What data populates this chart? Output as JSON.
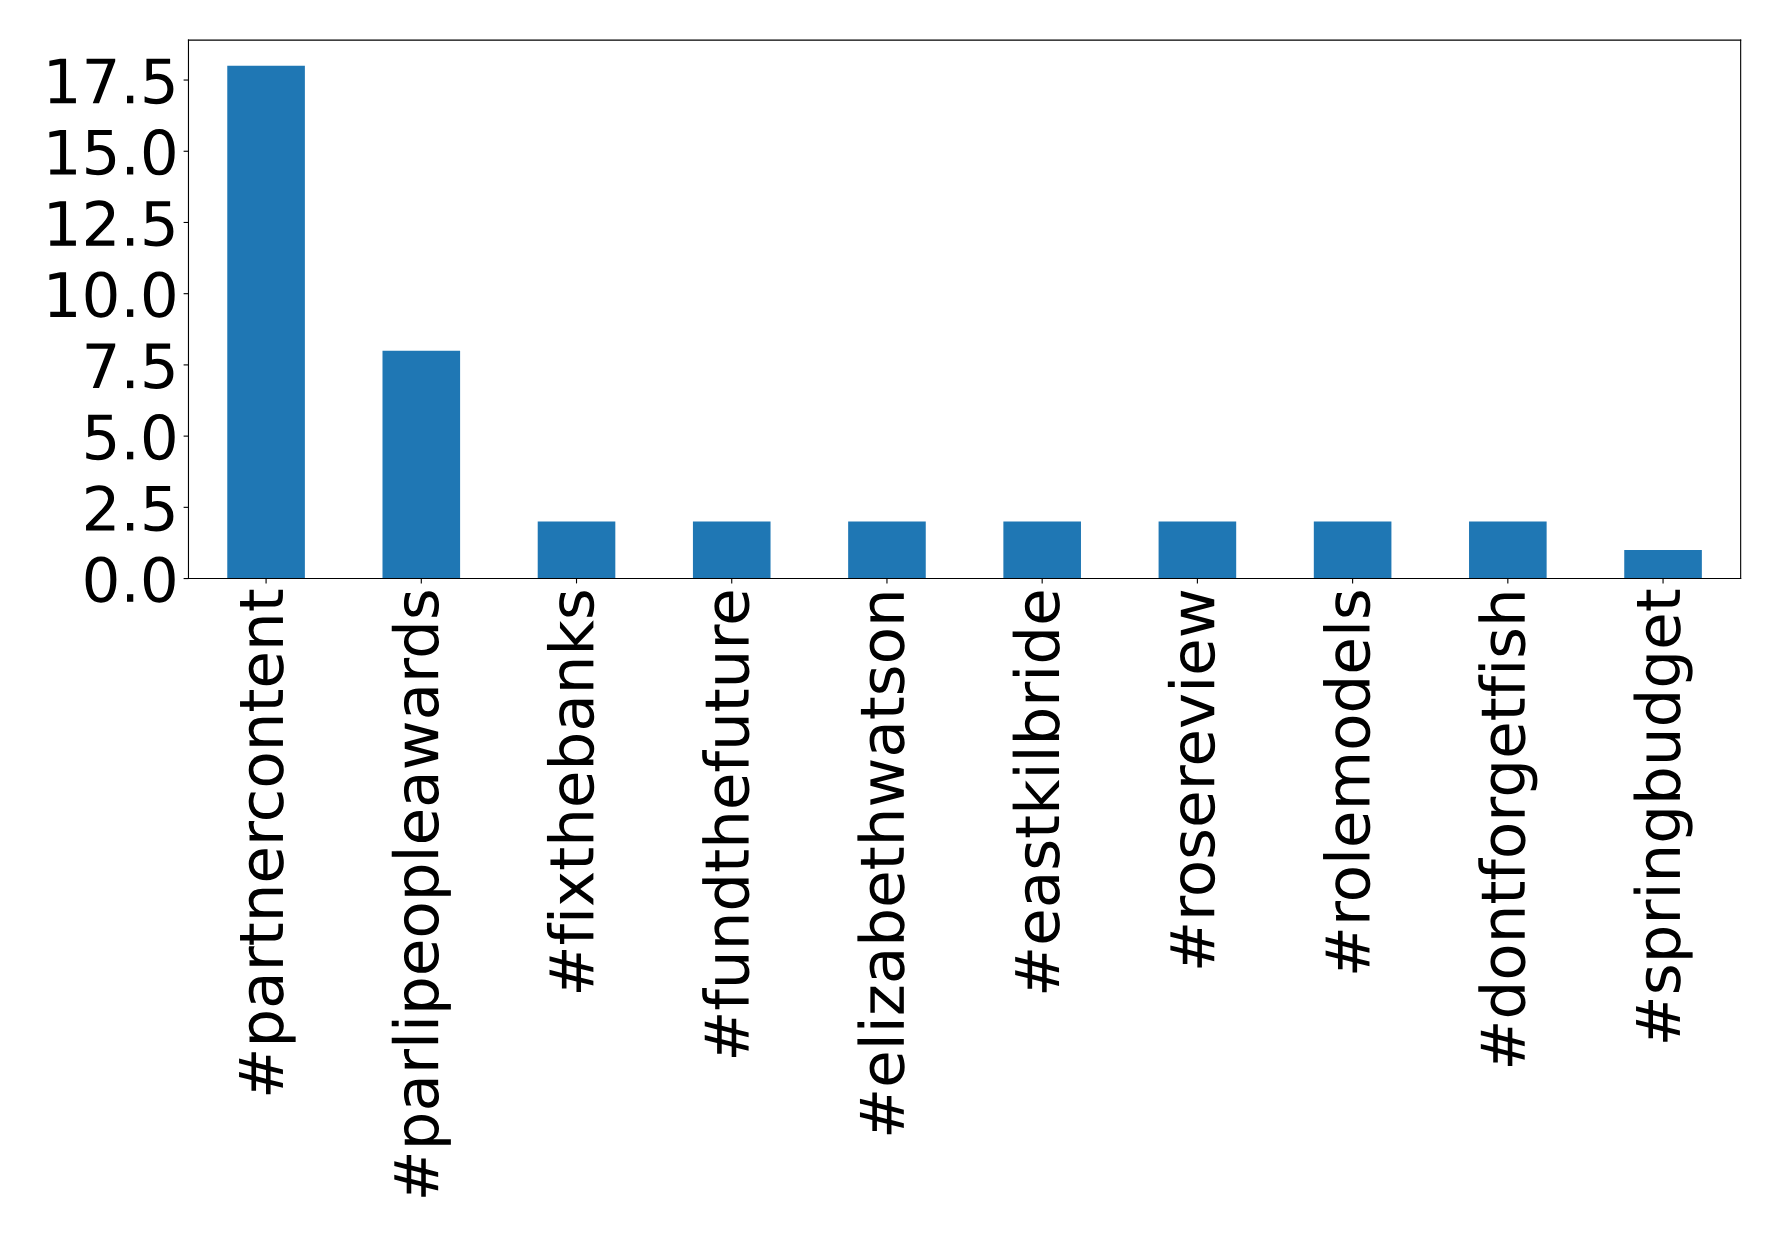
{
  "chart_data": {
    "type": "bar",
    "categories": [
      "#partnercontent",
      "#parlipeopleawards",
      "#fixthebanks",
      "#fundthefuture",
      "#elizabethwatson",
      "#eastkilbride",
      "#rosereview",
      "#rolemodels",
      "#dontforgetfish",
      "#springbudget"
    ],
    "values": [
      18,
      8,
      2,
      2,
      2,
      2,
      2,
      2,
      2,
      1
    ],
    "color": "#1f77b4",
    "ylim": [
      0,
      18.9
    ],
    "yticks": [
      {
        "value": 0,
        "label": "0.0"
      },
      {
        "value": 2.5,
        "label": "2.5"
      },
      {
        "value": 5,
        "label": "5.0"
      },
      {
        "value": 7.5,
        "label": "7.5"
      },
      {
        "value": 10,
        "label": "10.0"
      },
      {
        "value": 12.5,
        "label": "12.5"
      },
      {
        "value": 15,
        "label": "15.0"
      },
      {
        "value": 17.5,
        "label": "17.5"
      }
    ],
    "grid": false
  }
}
